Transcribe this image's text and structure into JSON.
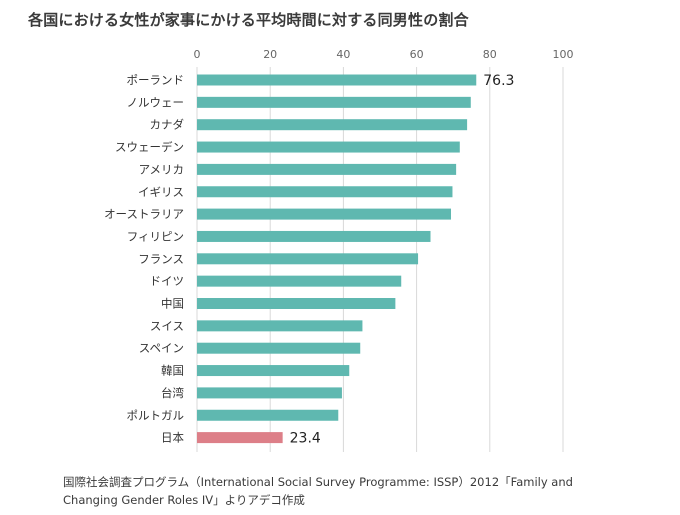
{
  "title": "各国における女性が家事にかける平均時間に対する同男性の割合",
  "source": {
    "line1": "国際社会調査プログラム（International Social Survey Programme: ISSP）2012「Family and",
    "line2": "Changing Gender Roles IV」よりアデコ作成"
  },
  "colors": {
    "bar": "#5fb8b0",
    "highlight": "#dd7f88",
    "grid": "#d9d9d9",
    "tick_text": "#666666",
    "label_text": "#333333"
  },
  "chart_data": {
    "type": "bar",
    "orientation": "horizontal",
    "title": "各国における女性が家事にかける平均時間に対する同男性の割合",
    "xlim": [
      0,
      100
    ],
    "xticks": [
      0,
      20,
      40,
      60,
      80,
      100
    ],
    "axis_position": "top",
    "grid": true,
    "categories": [
      "ポーランド",
      "ノルウェー",
      "カナダ",
      "スウェーデン",
      "アメリカ",
      "イギリス",
      "オーストラリア",
      "フィリピン",
      "フランス",
      "ドイツ",
      "中国",
      "スイス",
      "スペイン",
      "韓国",
      "台湾",
      "ポルトガル",
      "日本"
    ],
    "values": [
      76.3,
      74.8,
      73.8,
      71.8,
      70.8,
      69.8,
      69.4,
      63.8,
      60.4,
      55.8,
      54.2,
      45.2,
      44.6,
      41.6,
      39.6,
      38.6,
      23.4
    ],
    "highlight": [
      "日本"
    ],
    "data_labels": {
      "ポーランド": "76.3",
      "日本": "23.4"
    }
  }
}
